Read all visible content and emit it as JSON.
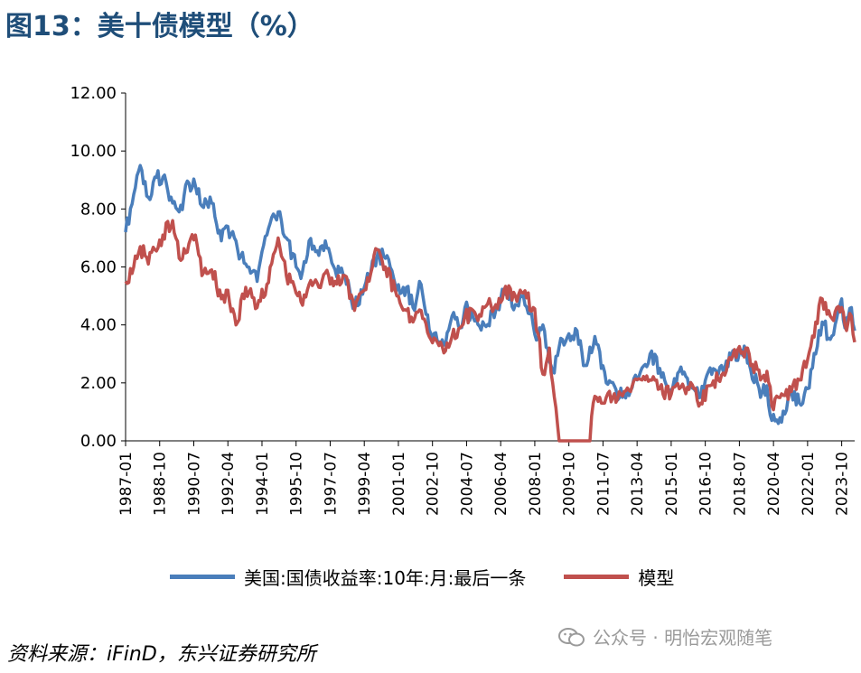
{
  "title": "图13：美十债模型（%）",
  "source": "资料来源：iFinD，东兴证券研究所",
  "watermark": "公众号 · 明怡宏观随笔",
  "chart_data": {
    "type": "line",
    "title": "",
    "xlabel": "",
    "ylabel": "",
    "ylim": [
      0,
      12
    ],
    "yticks": [
      "0.00",
      "2.00",
      "4.00",
      "6.00",
      "8.00",
      "10.00",
      "12.00"
    ],
    "xticks": [
      "1987-01",
      "1988-10",
      "1990-07",
      "1992-04",
      "1994-01",
      "1995-10",
      "1997-07",
      "1999-04",
      "2001-01",
      "2002-10",
      "2004-07",
      "2006-04",
      "2008-01",
      "2009-10",
      "2011-07",
      "2013-04",
      "2015-01",
      "2016-10",
      "2018-07",
      "2020-04",
      "2022-01",
      "2023-10"
    ],
    "legend_position": "bottom",
    "grid": false,
    "series": [
      {
        "name": "美国:国债收益率:10年:月:最后一条",
        "color": "#4a7ebb",
        "points": [
          [
            "1987-01",
            7.2
          ],
          [
            "1987-06",
            8.5
          ],
          [
            "1987-10",
            9.5
          ],
          [
            "1988-03",
            8.4
          ],
          [
            "1988-07",
            9.1
          ],
          [
            "1988-12",
            9.1
          ],
          [
            "1989-06",
            8.2
          ],
          [
            "1989-10",
            7.9
          ],
          [
            "1990-04",
            8.9
          ],
          [
            "1990-08",
            8.8
          ],
          [
            "1990-12",
            8.1
          ],
          [
            "1991-06",
            8.2
          ],
          [
            "1991-12",
            6.9
          ],
          [
            "1992-04",
            7.4
          ],
          [
            "1992-10",
            6.6
          ],
          [
            "1993-04",
            6.0
          ],
          [
            "1993-10",
            5.5
          ],
          [
            "1994-04",
            7.1
          ],
          [
            "1994-11",
            7.9
          ],
          [
            "1995-04",
            7.0
          ],
          [
            "1995-10",
            6.0
          ],
          [
            "1996-01",
            5.6
          ],
          [
            "1996-06",
            6.9
          ],
          [
            "1996-12",
            6.4
          ],
          [
            "1997-04",
            6.9
          ],
          [
            "1997-10",
            5.9
          ],
          [
            "1998-04",
            5.7
          ],
          [
            "1998-10",
            4.6
          ],
          [
            "1999-04",
            5.3
          ],
          [
            "1999-12",
            6.4
          ],
          [
            "2000-05",
            6.3
          ],
          [
            "2000-12",
            5.2
          ],
          [
            "2001-06",
            5.3
          ],
          [
            "2001-10",
            4.6
          ],
          [
            "2002-03",
            5.4
          ],
          [
            "2002-09",
            3.7
          ],
          [
            "2003-06",
            3.3
          ],
          [
            "2003-10",
            4.3
          ],
          [
            "2004-03",
            3.9
          ],
          [
            "2004-06",
            4.6
          ],
          [
            "2005-01",
            4.2
          ],
          [
            "2005-06",
            4.0
          ],
          [
            "2006-01",
            4.5
          ],
          [
            "2006-06",
            5.1
          ],
          [
            "2007-01",
            4.7
          ],
          [
            "2007-06",
            5.0
          ],
          [
            "2007-12",
            4.0
          ],
          [
            "2008-03",
            3.5
          ],
          [
            "2008-06",
            4.0
          ],
          [
            "2008-12",
            2.4
          ],
          [
            "2009-06",
            3.5
          ],
          [
            "2010-03",
            3.8
          ],
          [
            "2010-08",
            2.6
          ],
          [
            "2011-02",
            3.6
          ],
          [
            "2011-09",
            2.0
          ],
          [
            "2012-07",
            1.5
          ],
          [
            "2013-05",
            2.2
          ],
          [
            "2013-12",
            3.0
          ],
          [
            "2014-06",
            2.5
          ],
          [
            "2015-01",
            1.7
          ],
          [
            "2015-06",
            2.4
          ],
          [
            "2016-07",
            1.5
          ],
          [
            "2016-12",
            2.4
          ],
          [
            "2017-06",
            2.3
          ],
          [
            "2018-02",
            2.9
          ],
          [
            "2018-11",
            3.1
          ],
          [
            "2019-08",
            1.5
          ],
          [
            "2019-12",
            1.9
          ],
          [
            "2020-03",
            0.7
          ],
          [
            "2020-07",
            0.6
          ],
          [
            "2021-03",
            1.7
          ],
          [
            "2021-08",
            1.3
          ],
          [
            "2022-01",
            1.8
          ],
          [
            "2022-06",
            3.0
          ],
          [
            "2022-10",
            4.1
          ],
          [
            "2023-03",
            3.5
          ],
          [
            "2023-10",
            4.9
          ],
          [
            "2023-12",
            3.9
          ],
          [
            "2024-04",
            4.6
          ],
          [
            "2024-06",
            3.8
          ]
        ]
      },
      {
        "name": "模型",
        "color": "#c0504d",
        "points": [
          [
            "1987-01",
            5.5
          ],
          [
            "1987-06",
            6.0
          ],
          [
            "1987-10",
            6.7
          ],
          [
            "1988-03",
            6.1
          ],
          [
            "1988-07",
            6.6
          ],
          [
            "1988-12",
            7.1
          ],
          [
            "1989-06",
            7.6
          ],
          [
            "1989-10",
            6.3
          ],
          [
            "1990-04",
            6.8
          ],
          [
            "1990-08",
            7.1
          ],
          [
            "1990-12",
            5.7
          ],
          [
            "1991-06",
            5.9
          ],
          [
            "1991-12",
            4.9
          ],
          [
            "1992-04",
            5.2
          ],
          [
            "1992-09",
            4.0
          ],
          [
            "1993-03",
            5.3
          ],
          [
            "1993-10",
            4.6
          ],
          [
            "1994-04",
            5.4
          ],
          [
            "1994-11",
            7.0
          ],
          [
            "1995-04",
            5.7
          ],
          [
            "1995-10",
            5.1
          ],
          [
            "1996-01",
            4.8
          ],
          [
            "1996-06",
            5.4
          ],
          [
            "1996-12",
            5.3
          ],
          [
            "1997-04",
            5.8
          ],
          [
            "1997-10",
            5.5
          ],
          [
            "1998-04",
            5.7
          ],
          [
            "1998-10",
            4.5
          ],
          [
            "1999-04",
            5.2
          ],
          [
            "1999-12",
            6.6
          ],
          [
            "2000-05",
            6.0
          ],
          [
            "2000-12",
            5.0
          ],
          [
            "2001-06",
            4.5
          ],
          [
            "2001-10",
            4.1
          ],
          [
            "2002-03",
            4.5
          ],
          [
            "2002-09",
            3.5
          ],
          [
            "2003-06",
            3.1
          ],
          [
            "2003-10",
            3.6
          ],
          [
            "2004-03",
            3.9
          ],
          [
            "2004-06",
            4.3
          ],
          [
            "2005-01",
            4.3
          ],
          [
            "2005-06",
            4.6
          ],
          [
            "2006-01",
            4.7
          ],
          [
            "2006-06",
            5.2
          ],
          [
            "2007-01",
            5.0
          ],
          [
            "2007-06",
            5.1
          ],
          [
            "2007-12",
            4.6
          ],
          [
            "2008-03",
            3.7
          ],
          [
            "2008-06",
            2.3
          ],
          [
            "2008-10",
            3.2
          ],
          [
            "2008-12",
            2.0
          ],
          [
            "2009-04",
            0.0
          ],
          [
            "2009-10",
            0.0
          ],
          [
            "2010-06",
            0.0
          ],
          [
            "2010-11",
            0.0
          ],
          [
            "2011-01",
            1.3
          ],
          [
            "2011-06",
            1.3
          ],
          [
            "2011-09",
            1.5
          ],
          [
            "2012-06",
            1.6
          ],
          [
            "2013-01",
            1.9
          ],
          [
            "2013-12",
            2.1
          ],
          [
            "2014-06",
            1.8
          ],
          [
            "2015-01",
            1.6
          ],
          [
            "2015-06",
            1.8
          ],
          [
            "2016-03",
            1.8
          ],
          [
            "2016-07",
            1.3
          ],
          [
            "2016-12",
            1.9
          ],
          [
            "2017-06",
            2.1
          ],
          [
            "2018-02",
            2.8
          ],
          [
            "2018-11",
            3.2
          ],
          [
            "2019-08",
            2.1
          ],
          [
            "2019-12",
            2.4
          ],
          [
            "2020-03",
            1.2
          ],
          [
            "2020-07",
            1.5
          ],
          [
            "2021-03",
            1.7
          ],
          [
            "2021-08",
            2.1
          ],
          [
            "2022-01",
            2.8
          ],
          [
            "2022-06",
            4.1
          ],
          [
            "2022-10",
            4.9
          ],
          [
            "2023-03",
            4.3
          ],
          [
            "2023-10",
            4.6
          ],
          [
            "2023-12",
            4.0
          ],
          [
            "2024-04",
            4.3
          ],
          [
            "2024-06",
            3.4
          ]
        ]
      }
    ]
  }
}
